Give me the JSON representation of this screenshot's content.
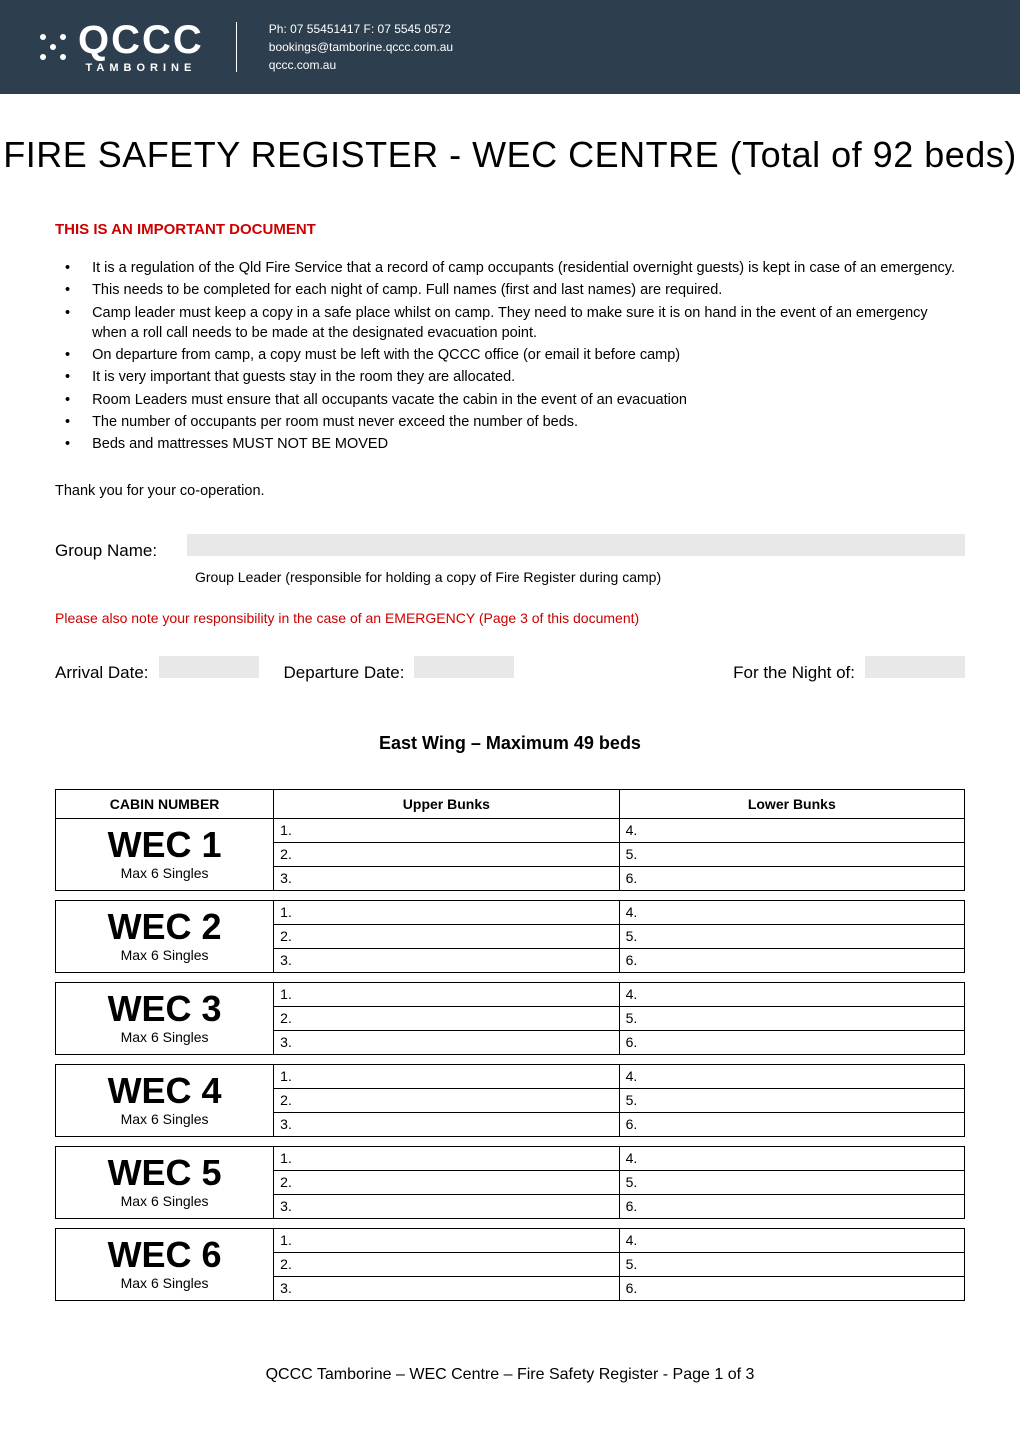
{
  "header": {
    "logo_main": "QCCC",
    "logo_sub": "TAMBORINE",
    "contact_line1": "Ph: 07 55451417 F: 07 5545 0572",
    "contact_line2": "bookings@tamborine.qccc.com.au",
    "contact_line3": "qccc.com.au",
    "background_color": "#2d3e4e"
  },
  "page_title": "FIRE SAFETY REGISTER - WEC CENTRE (Total of 92 beds)",
  "important_heading": "THIS IS AN IMPORTANT DOCUMENT",
  "bullet_points": [
    "It is a regulation of the Qld Fire Service that a record of camp occupants (residential overnight guests) is kept in case of an emergency.",
    "This needs to be completed for each night of camp. Full names (first and last names) are required.",
    "Camp leader must keep a copy in a safe place whilst on camp. They need to make sure it is on hand in the event of an emergency when a roll call needs to be made at the designated evacuation point.",
    "On departure from camp, a copy must be left with the QCCC office (or email it before camp)",
    "It is very important that guests stay in the room they are allocated.",
    "Room Leaders must ensure that all occupants vacate the cabin in the event of an evacuation",
    "The number of occupants per room must never exceed the number of beds.",
    "Beds and mattresses MUST NOT BE MOVED"
  ],
  "thanks_text": "Thank you for your co-operation.",
  "form": {
    "group_name_label": "Group Name:",
    "group_leader_note": "Group Leader (responsible for holding a copy of Fire Register during camp)",
    "emergency_note": "Please also note your responsibility in the case of an EMERGENCY (Page 3 of this document)",
    "arrival_label": "Arrival Date:",
    "departure_label": "Departure Date:",
    "night_label": "For the Night of:"
  },
  "wing_title": "East Wing – Maximum 49 beds",
  "table": {
    "headers": [
      "CABIN NUMBER",
      "Upper Bunks",
      "Lower Bunks"
    ],
    "cabins": [
      {
        "name": "WEC 1",
        "max": "Max 6 Singles",
        "upper": [
          "1.",
          "2.",
          "3."
        ],
        "lower": [
          "4.",
          "5.",
          "6."
        ]
      },
      {
        "name": "WEC 2",
        "max": "Max 6 Singles",
        "upper": [
          "1.",
          "2.",
          "3."
        ],
        "lower": [
          "4.",
          "5.",
          "6."
        ]
      },
      {
        "name": "WEC 3",
        "max": "Max 6 Singles",
        "upper": [
          "1.",
          "2.",
          "3."
        ],
        "lower": [
          "4.",
          "5.",
          "6."
        ]
      },
      {
        "name": "WEC 4",
        "max": "Max 6 Singles",
        "upper": [
          "1.",
          "2.",
          "3."
        ],
        "lower": [
          "4.",
          "5.",
          "6."
        ]
      },
      {
        "name": "WEC 5",
        "max": "Max 6 Singles",
        "upper": [
          "1.",
          "2.",
          "3."
        ],
        "lower": [
          "4.",
          "5.",
          "6."
        ]
      },
      {
        "name": "WEC 6",
        "max": "Max 6 Singles",
        "upper": [
          "1.",
          "2.",
          "3."
        ],
        "lower": [
          "4.",
          "5.",
          "6."
        ]
      }
    ]
  },
  "footer_text": "QCCC Tamborine – WEC Centre – Fire Safety Register - Page 1 of 3",
  "colors": {
    "accent_red": "#cc0000",
    "field_bg": "#e8e8e8",
    "border": "#000000"
  }
}
